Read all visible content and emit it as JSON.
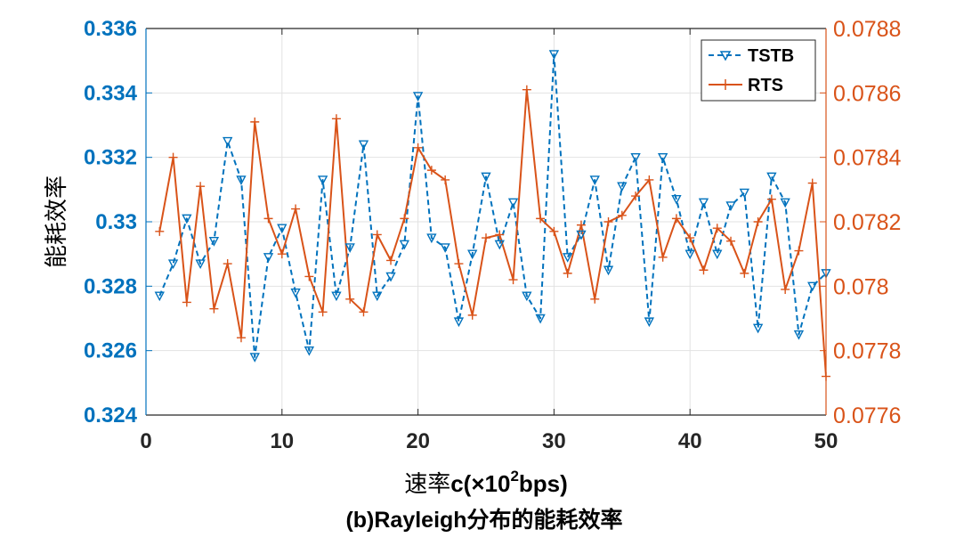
{
  "chart_data": {
    "type": "line",
    "caption": "(b)Rayleigh分布的能耗效率",
    "xlabel_prefix": "速率",
    "xlabel_main": "c(×10",
    "xlabel_sup": "2",
    "xlabel_suffix": "bps)",
    "ylabel": "能耗效率",
    "xlim": [
      0,
      50
    ],
    "xticks": [
      0,
      10,
      20,
      30,
      40,
      50
    ],
    "ylim_left": [
      0.324,
      0.336
    ],
    "yticks_left": [
      "0.324",
      "0.326",
      "0.328",
      "0.33",
      "0.332",
      "0.334",
      "0.336"
    ],
    "ylim_right": [
      0.0776,
      0.0788
    ],
    "yticks_right": [
      "0.0776",
      "0.0778",
      "0.078",
      "0.0782",
      "0.0784",
      "0.0786",
      "0.0788"
    ],
    "grid": true,
    "legend_position": "top-right",
    "x": [
      1,
      2,
      3,
      4,
      5,
      6,
      7,
      8,
      9,
      10,
      11,
      12,
      13,
      14,
      15,
      16,
      17,
      18,
      19,
      20,
      21,
      22,
      23,
      24,
      25,
      26,
      27,
      28,
      29,
      30,
      31,
      32,
      33,
      34,
      35,
      36,
      37,
      38,
      39,
      40,
      41,
      42,
      43,
      44,
      45,
      46,
      47,
      48,
      49,
      50
    ],
    "series": [
      {
        "name": "TSTB",
        "axis": "left",
        "color": "#0072BD",
        "line_style": "dashed",
        "marker": "down-triangle",
        "values": [
          0.3277,
          0.3287,
          0.3301,
          0.3287,
          0.3294,
          0.3325,
          0.3313,
          0.3258,
          0.3289,
          0.3298,
          0.3278,
          0.326,
          0.3313,
          0.3277,
          0.3292,
          0.3324,
          0.3277,
          0.3283,
          0.3293,
          0.3339,
          0.3295,
          0.3292,
          0.3269,
          0.329,
          0.3314,
          0.3293,
          0.3306,
          0.3277,
          0.327,
          0.3352,
          0.3289,
          0.3296,
          0.3313,
          0.3285,
          0.3311,
          0.332,
          0.3269,
          0.332,
          0.3307,
          0.329,
          0.3306,
          0.329,
          0.3305,
          0.3309,
          0.3267,
          0.3314,
          0.3306,
          0.3265,
          0.328,
          0.3284
        ]
      },
      {
        "name": "RTS",
        "axis": "right",
        "color": "#D95319",
        "line_style": "solid",
        "marker": "plus",
        "values": [
          0.07817,
          0.0784,
          0.07795,
          0.07831,
          0.07793,
          0.07807,
          0.07784,
          0.07851,
          0.07821,
          0.0781,
          0.07824,
          0.07803,
          0.07792,
          0.07852,
          0.07796,
          0.07792,
          0.07816,
          0.07808,
          0.07821,
          0.07843,
          0.07836,
          0.07833,
          0.07807,
          0.07791,
          0.07815,
          0.07816,
          0.07802,
          0.07861,
          0.07821,
          0.07817,
          0.07804,
          0.07819,
          0.07796,
          0.0782,
          0.07822,
          0.07828,
          0.07833,
          0.07809,
          0.07821,
          0.07815,
          0.07805,
          0.07818,
          0.07814,
          0.07804,
          0.0782,
          0.07827,
          0.07799,
          0.07811,
          0.07832,
          0.07772
        ]
      }
    ]
  }
}
